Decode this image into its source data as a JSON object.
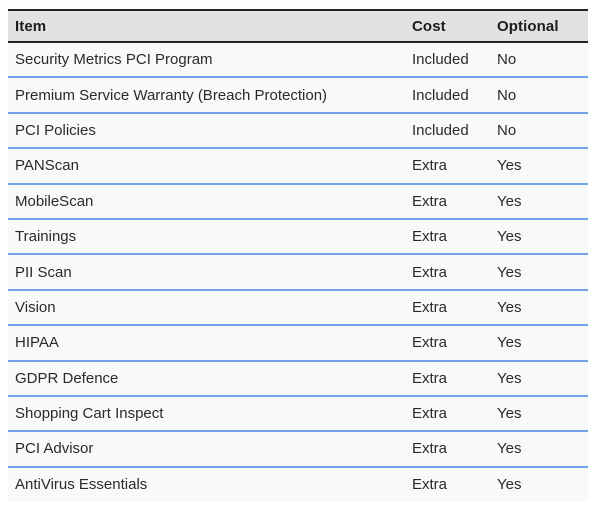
{
  "table": {
    "columns": [
      {
        "key": "item",
        "label": "Item"
      },
      {
        "key": "cost",
        "label": "Cost"
      },
      {
        "key": "optional",
        "label": "Optional"
      }
    ],
    "rows": [
      {
        "item": "Security Metrics PCI Program",
        "cost": "Included",
        "optional": "No"
      },
      {
        "item": "Premium Service Warranty (Breach Protection)",
        "cost": "Included",
        "optional": "No"
      },
      {
        "item": "PCI Policies",
        "cost": "Included",
        "optional": "No"
      },
      {
        "item": "PANScan",
        "cost": "Extra",
        "optional": "Yes"
      },
      {
        "item": "MobileScan",
        "cost": "Extra",
        "optional": "Yes"
      },
      {
        "item": "Trainings",
        "cost": "Extra",
        "optional": "Yes"
      },
      {
        "item": "PII Scan",
        "cost": "Extra",
        "optional": "Yes"
      },
      {
        "item": "Vision",
        "cost": "Extra",
        "optional": "Yes"
      },
      {
        "item": "HIPAA",
        "cost": "Extra",
        "optional": "Yes"
      },
      {
        "item": "GDPR Defence",
        "cost": "Extra",
        "optional": "Yes"
      },
      {
        "item": "Shopping Cart Inspect",
        "cost": "Extra",
        "optional": "Yes"
      },
      {
        "item": "PCI Advisor",
        "cost": "Extra",
        "optional": "Yes"
      },
      {
        "item": "AntiVirus Essentials",
        "cost": "Extra",
        "optional": "Yes"
      }
    ],
    "colors": {
      "header_bg": "#e2e2e2",
      "row_bg": "#f8f9fb",
      "border_dark": "#242426",
      "row_divider": "#74a2e8",
      "header_text": "#1c1c1e",
      "body_text": "#2a2a2c",
      "page_bg": "#ffffff"
    }
  }
}
